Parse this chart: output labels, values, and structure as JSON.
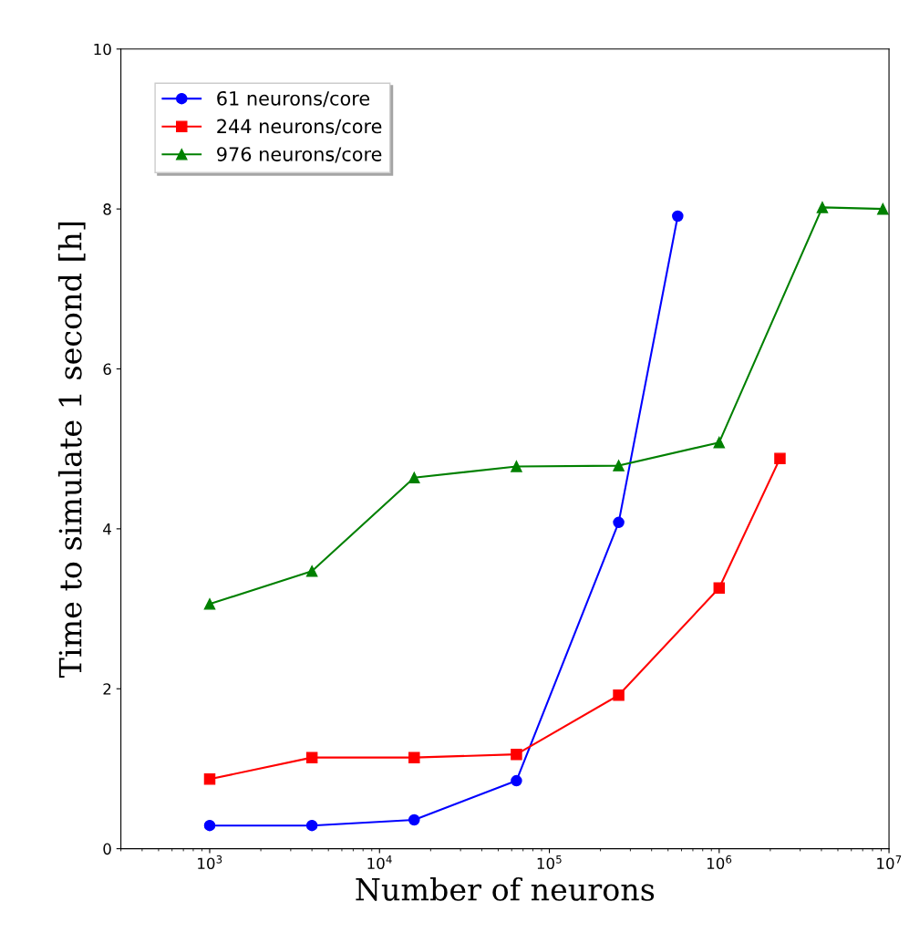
{
  "chart_data": {
    "type": "line",
    "xlabel": "Number of neurons",
    "ylabel": "Time to simulate 1 second [h]",
    "log": "x",
    "xlim": [
      300,
      10000000
    ],
    "xticks": [
      {
        "value": 1000,
        "label": "10$^{3}$"
      },
      {
        "value": 10000,
        "label": "10$^{4}$"
      },
      {
        "value": 100000,
        "label": "10$^{5}$"
      },
      {
        "value": 1000000,
        "label": "10$^{6}$"
      },
      {
        "value": 10000000,
        "label": "10$^{7}$"
      }
    ],
    "ylim": [
      0,
      10
    ],
    "yticks": [
      0,
      2,
      4,
      6,
      8,
      10
    ],
    "legend": "top left",
    "grid": false,
    "series": [
      {
        "name": "61 neurons/core",
        "color": "#0000ff",
        "marker": "circle",
        "x": [
          1000,
          4000,
          16000,
          64000,
          256000,
          570000
        ],
        "values": [
          0.29,
          0.29,
          0.36,
          0.85,
          4.08,
          7.91
        ]
      },
      {
        "name": "244 neurons/core",
        "color": "#ff0000",
        "marker": "square",
        "x": [
          1000,
          4000,
          16000,
          64000,
          256000,
          1000000,
          2280000
        ],
        "values": [
          0.87,
          1.14,
          1.14,
          1.18,
          1.92,
          3.26,
          4.88
        ]
      },
      {
        "name": "976 neurons/core",
        "color": "#008000",
        "marker": "triangle",
        "x": [
          1000,
          4000,
          16000,
          64000,
          256000,
          1000000,
          4050000,
          9200000
        ],
        "values": [
          3.06,
          3.47,
          4.64,
          4.78,
          4.79,
          5.08,
          8.02,
          8.0
        ]
      }
    ]
  }
}
